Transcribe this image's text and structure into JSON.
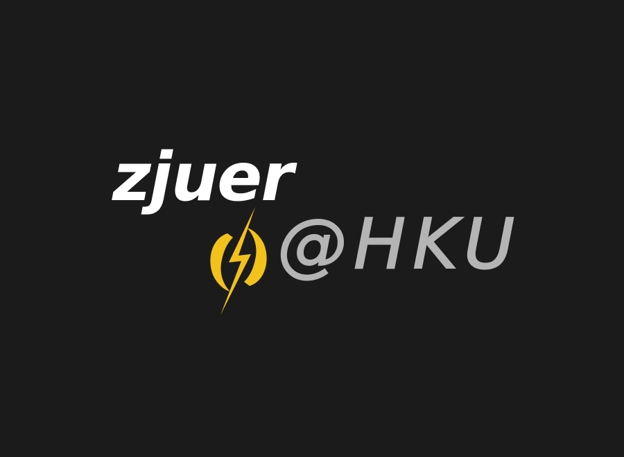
{
  "logo": {
    "primary_text": "zjuer",
    "secondary_text": "@HKU",
    "icon": "lightning-bolt-icon",
    "colors": {
      "background": "#1b1b1b",
      "primary_text": "#ffffff",
      "secondary_text": "#b4b4b4",
      "bolt": "#f2c21b"
    }
  }
}
